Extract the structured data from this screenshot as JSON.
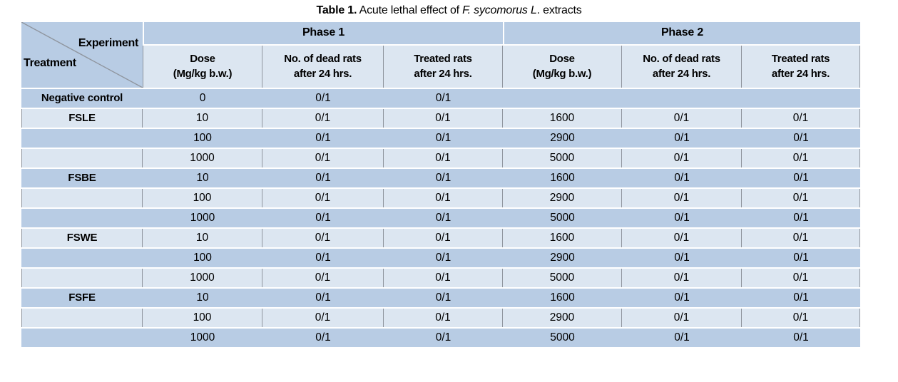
{
  "title": {
    "label_bold": "Table 1.",
    "text_before_italic": " Acute lethal effect of ",
    "italic_text": "F.  sycomorus L",
    "text_after_italic": ". extracts"
  },
  "table": {
    "corner": {
      "top_label": "Experiment",
      "bottom_label": "Treatment"
    },
    "phases": [
      {
        "label": "Phase 1"
      },
      {
        "label": "Phase 2"
      }
    ],
    "sub_headers": [
      {
        "line1": "Dose",
        "line2": "(Mg/kg b.w.)"
      },
      {
        "line1": "No. of dead rats",
        "line2": "after 24 hrs."
      },
      {
        "line1": "Treated rats",
        "line2": "after 24 hrs."
      },
      {
        "line1": "Dose",
        "line2": "(Mg/kg b.w.)"
      },
      {
        "line1": "No. of dead rats",
        "line2": "after 24 hrs."
      },
      {
        "line1": "Treated rats",
        "line2": "after 24 hrs."
      }
    ],
    "rows": [
      {
        "treatment": "Negative control",
        "phase1": [
          "0",
          "0/1",
          "0/1"
        ],
        "phase2": [
          "",
          "",
          ""
        ],
        "shade": "dark"
      },
      {
        "treatment": "FSLE",
        "phase1": [
          "10",
          "0/1",
          "0/1"
        ],
        "phase2": [
          "1600",
          "0/1",
          "0/1"
        ],
        "shade": "light"
      },
      {
        "treatment": "",
        "phase1": [
          "100",
          "0/1",
          "0/1"
        ],
        "phase2": [
          "2900",
          "0/1",
          "0/1"
        ],
        "shade": "dark"
      },
      {
        "treatment": "",
        "phase1": [
          "1000",
          "0/1",
          "0/1"
        ],
        "phase2": [
          "5000",
          "0/1",
          "0/1"
        ],
        "shade": "light"
      },
      {
        "treatment": "FSBE",
        "phase1": [
          "10",
          "0/1",
          "0/1"
        ],
        "phase2": [
          "1600",
          "0/1",
          "0/1"
        ],
        "shade": "dark"
      },
      {
        "treatment": "",
        "phase1": [
          "100",
          "0/1",
          "0/1"
        ],
        "phase2": [
          "2900",
          "0/1",
          "0/1"
        ],
        "shade": "light"
      },
      {
        "treatment": "",
        "phase1": [
          "1000",
          "0/1",
          "0/1"
        ],
        "phase2": [
          "5000",
          "0/1",
          "0/1"
        ],
        "shade": "dark"
      },
      {
        "treatment": "FSWE",
        "phase1": [
          "10",
          "0/1",
          "0/1"
        ],
        "phase2": [
          "1600",
          "0/1",
          "0/1"
        ],
        "shade": "light"
      },
      {
        "treatment": "",
        "phase1": [
          "100",
          "0/1",
          "0/1"
        ],
        "phase2": [
          "2900",
          "0/1",
          "0/1"
        ],
        "shade": "dark"
      },
      {
        "treatment": "",
        "phase1": [
          "1000",
          "0/1",
          "0/1"
        ],
        "phase2": [
          "5000",
          "0/1",
          "0/1"
        ],
        "shade": "light"
      },
      {
        "treatment": "FSFE",
        "phase1": [
          "10",
          "0/1",
          "0/1"
        ],
        "phase2": [
          "1600",
          "0/1",
          "0/1"
        ],
        "shade": "dark"
      },
      {
        "treatment": "",
        "phase1": [
          "100",
          "0/1",
          "0/1"
        ],
        "phase2": [
          "2900",
          "0/1",
          "0/1"
        ],
        "shade": "light"
      },
      {
        "treatment": "",
        "phase1": [
          "1000",
          "0/1",
          "0/1"
        ],
        "phase2": [
          "5000",
          "0/1",
          "0/1"
        ],
        "shade": "dark"
      }
    ]
  },
  "colors": {
    "row_dark": "#b8cce4",
    "row_light": "#dce6f1",
    "border_grey": "#8f959e",
    "separator_white": "#ffffff",
    "text": "#000000"
  }
}
